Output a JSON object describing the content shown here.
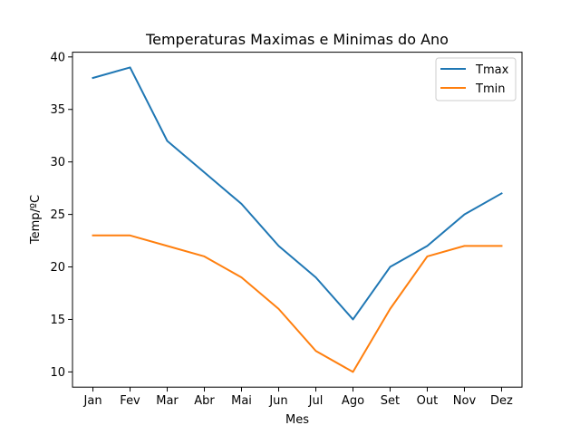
{
  "chart_data": {
    "type": "line",
    "title": "Temperaturas Maximas e Minimas do Ano",
    "xlabel": "Mes",
    "ylabel": "Temp/ºC",
    "categories": [
      "Jan",
      "Fev",
      "Mar",
      "Abr",
      "Mai",
      "Jun",
      "Jul",
      "Ago",
      "Set",
      "Out",
      "Nov",
      "Dez"
    ],
    "series": [
      {
        "name": "Tmax",
        "color": "#1f77b4",
        "values": [
          38,
          39,
          32,
          29,
          26,
          22,
          19,
          15,
          20,
          22,
          25,
          27
        ]
      },
      {
        "name": "Tmin",
        "color": "#ff7f0e",
        "values": [
          23,
          23,
          22,
          21,
          19,
          16,
          12,
          10,
          16,
          21,
          22,
          22
        ]
      }
    ],
    "ylim": [
      8.55,
      40.45
    ],
    "yticks": [
      10,
      15,
      20,
      25,
      30,
      35,
      40
    ],
    "grid": false,
    "legend_position": "top-right"
  }
}
